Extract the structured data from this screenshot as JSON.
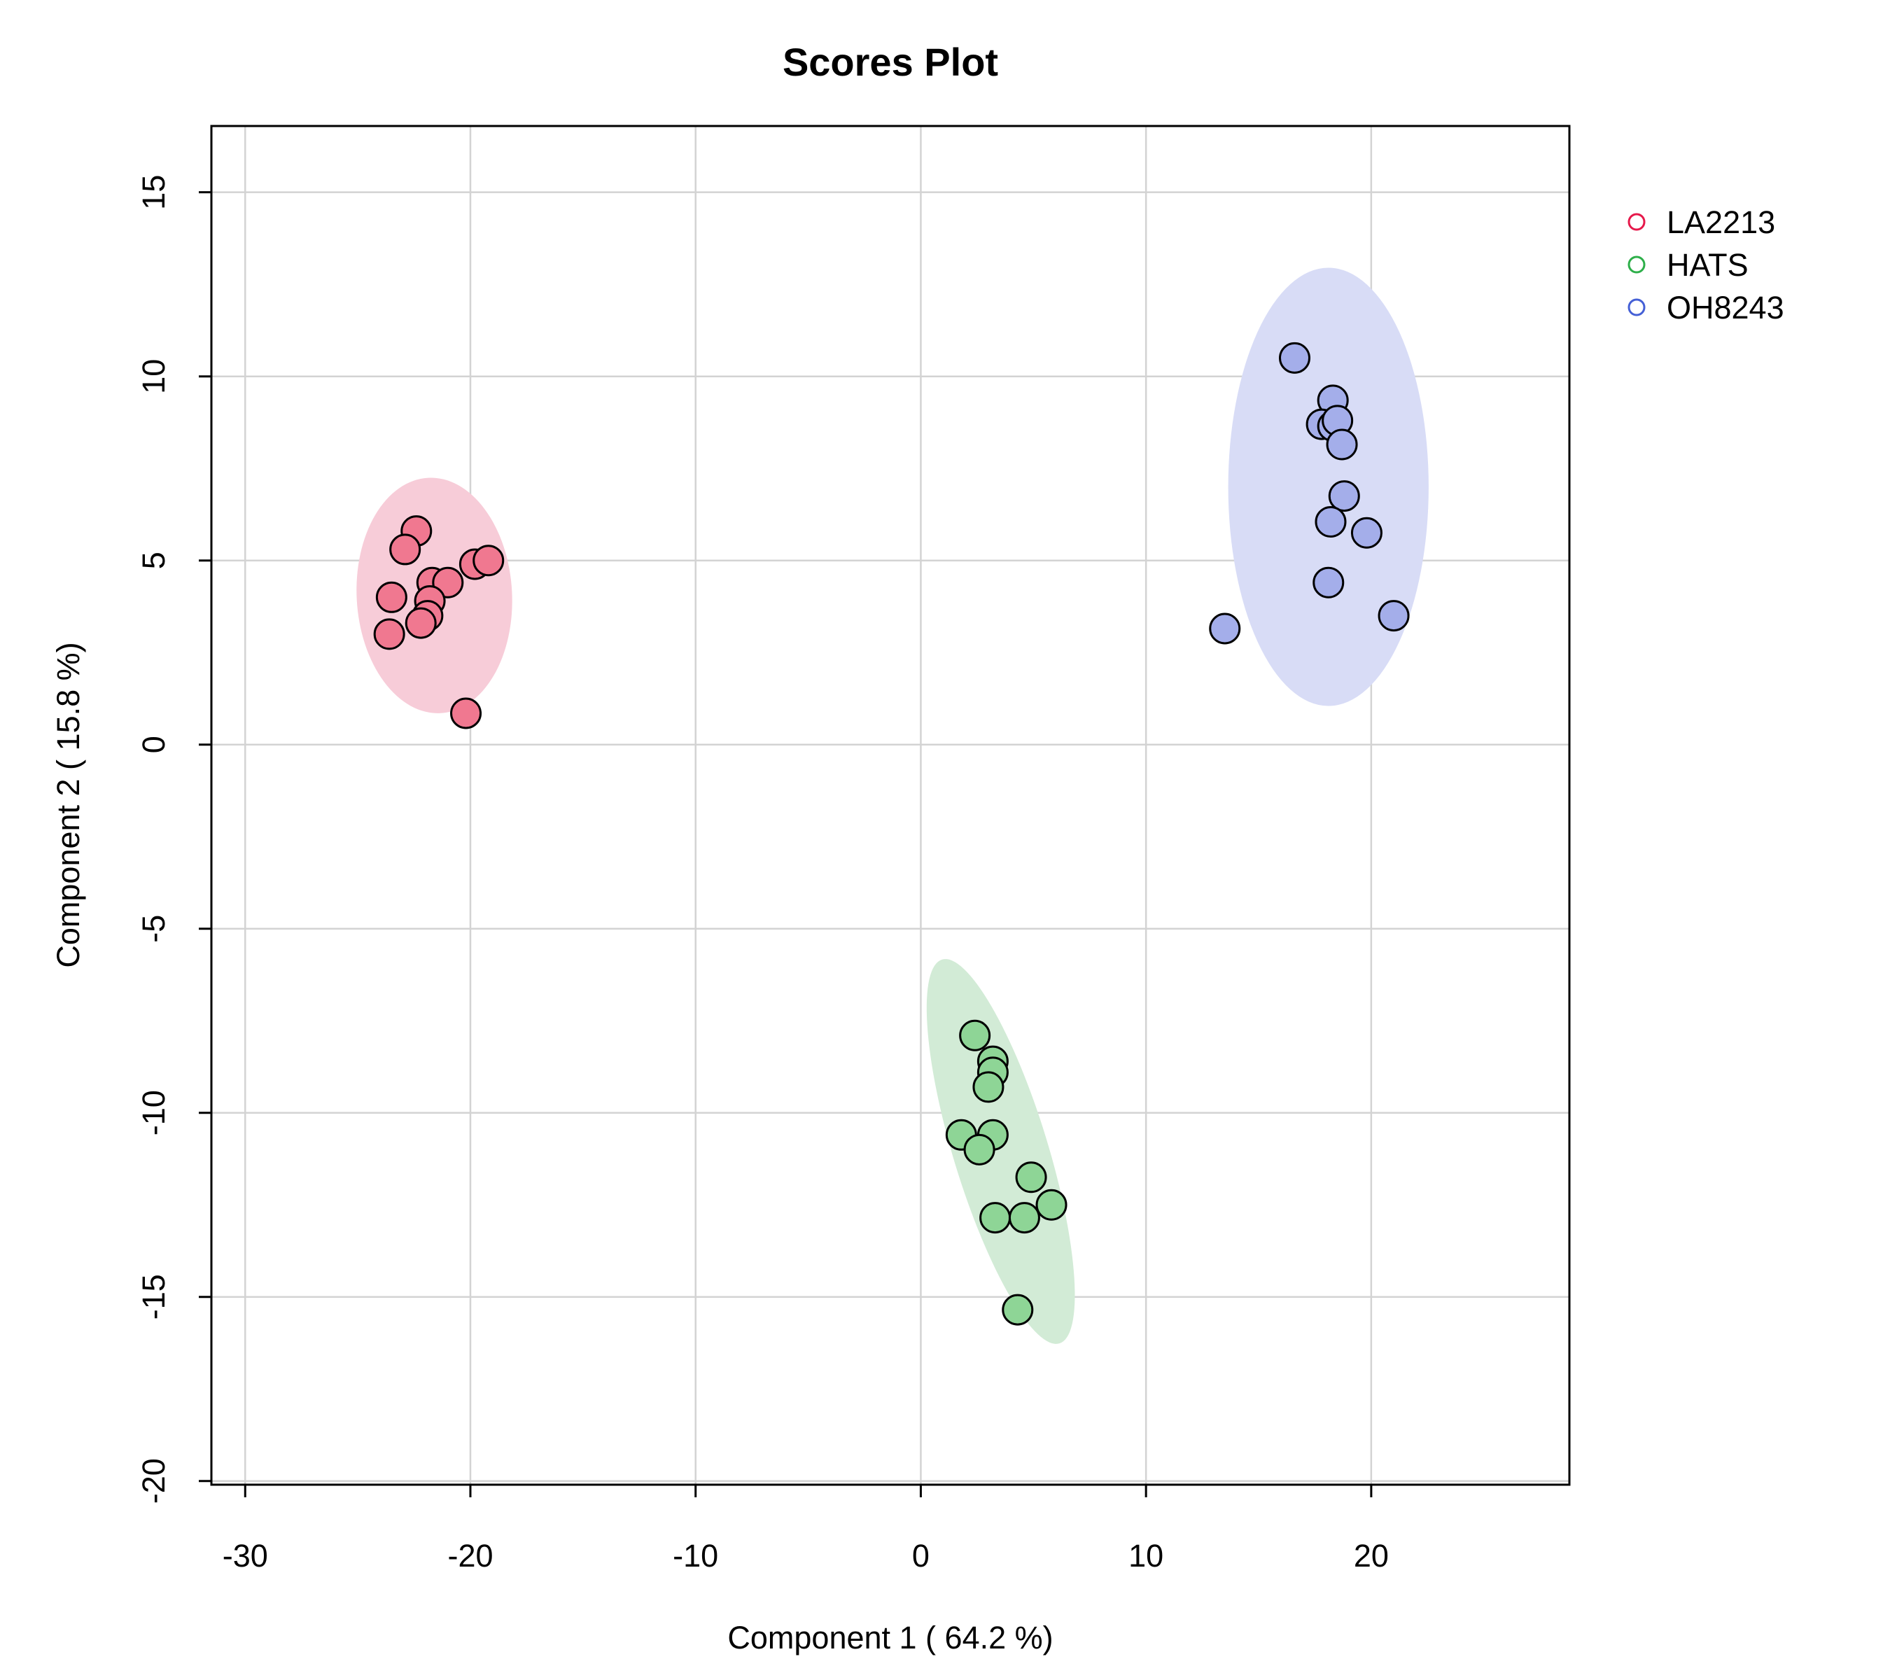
{
  "chart_data": {
    "type": "scatter",
    "title": "Scores Plot",
    "xlabel": "Component 1 ( 64.2 %)",
    "ylabel": "Component 2 ( 15.8 %)",
    "xlim": [
      -31.5,
      28.8
    ],
    "ylim": [
      -20.1,
      16.8
    ],
    "xticks": [
      -30,
      -20,
      -10,
      0,
      10,
      20
    ],
    "yticks": [
      -20,
      -15,
      -10,
      -5,
      0,
      5,
      10,
      15
    ],
    "grid": true,
    "legend_position": "top-right (outside plot)",
    "series": [
      {
        "name": "LA2213",
        "color": "#E6194B",
        "fill": "#F07890",
        "ellipse_fill": "#F7CCD8",
        "ellipse": {
          "cx": -21.6,
          "cy": 4.05,
          "rx": 3.45,
          "ry": 3.2,
          "angle": -3
        },
        "points": [
          [
            -22.4,
            5.8
          ],
          [
            -22.9,
            5.3
          ],
          [
            -23.5,
            4.0
          ],
          [
            -23.6,
            3.0
          ],
          [
            -21.7,
            4.4
          ],
          [
            -21.0,
            4.4
          ],
          [
            -21.8,
            3.9
          ],
          [
            -21.9,
            3.5
          ],
          [
            -22.2,
            3.3
          ],
          [
            -19.8,
            4.9
          ],
          [
            -19.2,
            5.0
          ],
          [
            -20.2,
            0.85
          ]
        ]
      },
      {
        "name": "HATS",
        "color": "#2EAF4A",
        "fill": "#8ED596",
        "ellipse_fill": "#D2EBD6",
        "ellipse": {
          "cx": 3.55,
          "cy": -11.05,
          "rx": 2.1,
          "ry": 5.45,
          "angle": -17
        },
        "points": [
          [
            2.4,
            -7.9
          ],
          [
            3.2,
            -8.6
          ],
          [
            3.2,
            -8.9
          ],
          [
            3.0,
            -9.3
          ],
          [
            1.8,
            -10.6
          ],
          [
            3.2,
            -10.6
          ],
          [
            2.6,
            -11.0
          ],
          [
            4.9,
            -11.75
          ],
          [
            5.8,
            -12.5
          ],
          [
            3.3,
            -12.85
          ],
          [
            4.6,
            -12.85
          ],
          [
            4.3,
            -15.35
          ]
        ]
      },
      {
        "name": "OH8243",
        "color": "#4560D6",
        "fill": "#A4AEEA",
        "ellipse_fill": "#D8DCF6",
        "ellipse": {
          "cx": 18.1,
          "cy": 7.0,
          "rx": 4.45,
          "ry": 5.95,
          "angle": 0
        },
        "points": [
          [
            16.6,
            10.5
          ],
          [
            18.3,
            9.35
          ],
          [
            17.8,
            8.7
          ],
          [
            18.3,
            8.65
          ],
          [
            18.5,
            8.8
          ],
          [
            18.7,
            8.15
          ],
          [
            18.8,
            6.75
          ],
          [
            18.2,
            6.05
          ],
          [
            19.8,
            5.75
          ],
          [
            18.1,
            4.4
          ],
          [
            21.0,
            3.5
          ],
          [
            13.5,
            3.15
          ]
        ]
      }
    ]
  }
}
